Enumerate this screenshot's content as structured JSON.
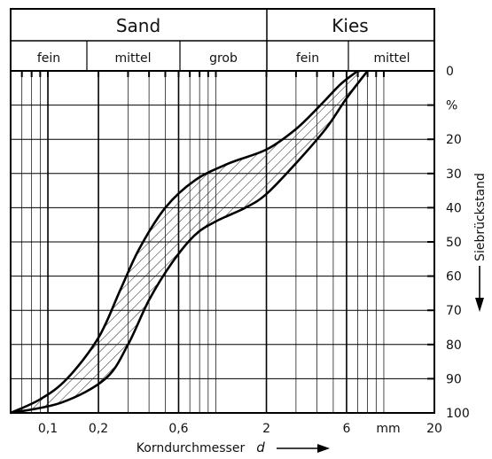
{
  "header": {
    "groups": [
      "Sand",
      "Kies"
    ],
    "subgroups": [
      "fein",
      "mittel",
      "grob",
      "fein",
      "mittel"
    ]
  },
  "chart_data": {
    "type": "area",
    "x_scale": "log",
    "xlim": [
      0.06,
      20
    ],
    "y_inverted": true,
    "ylim": [
      0,
      100
    ],
    "grid": true,
    "xlabel": "Korndurchmesser",
    "xlabel_symbol": "d",
    "x_unit": "mm",
    "ylabel": "Siebrückstand",
    "y_unit": "%",
    "x_tick_labels": [
      {
        "value": 0.1,
        "label": "0,1"
      },
      {
        "value": 0.2,
        "label": "0,2"
      },
      {
        "value": 0.6,
        "label": "0,6"
      },
      {
        "value": 2,
        "label": "2"
      },
      {
        "value": 6,
        "label": "6"
      },
      {
        "value": 20,
        "label": "20"
      }
    ],
    "y_tick_labels": [
      {
        "value": 0,
        "label": "0"
      },
      {
        "value": 10,
        "label": "%"
      },
      {
        "value": 20,
        "label": "20"
      },
      {
        "value": 30,
        "label": "30"
      },
      {
        "value": 40,
        "label": "40"
      },
      {
        "value": 50,
        "label": "50"
      },
      {
        "value": 60,
        "label": "60"
      },
      {
        "value": 70,
        "label": "70"
      },
      {
        "value": 80,
        "label": "80"
      },
      {
        "value": 90,
        "label": "90"
      },
      {
        "value": 100,
        "label": "100"
      }
    ],
    "series": [
      {
        "x": [
          0.06,
          0.09,
          0.13,
          0.2,
          0.27,
          0.35,
          0.5,
          0.75,
          1.2,
          2,
          3,
          4.2,
          5.5,
          7
        ],
        "y": [
          100,
          96,
          90,
          78,
          64,
          52,
          40,
          32,
          27,
          23,
          17,
          10,
          4,
          0
        ]
      },
      {
        "x": [
          0.06,
          0.12,
          0.22,
          0.3,
          0.4,
          0.55,
          0.75,
          1,
          1.5,
          2,
          3,
          4.5,
          6,
          8
        ],
        "y": [
          100,
          97,
          90,
          80,
          67,
          56,
          48,
          44,
          40,
          36,
          27,
          17,
          8,
          0
        ]
      }
    ]
  }
}
